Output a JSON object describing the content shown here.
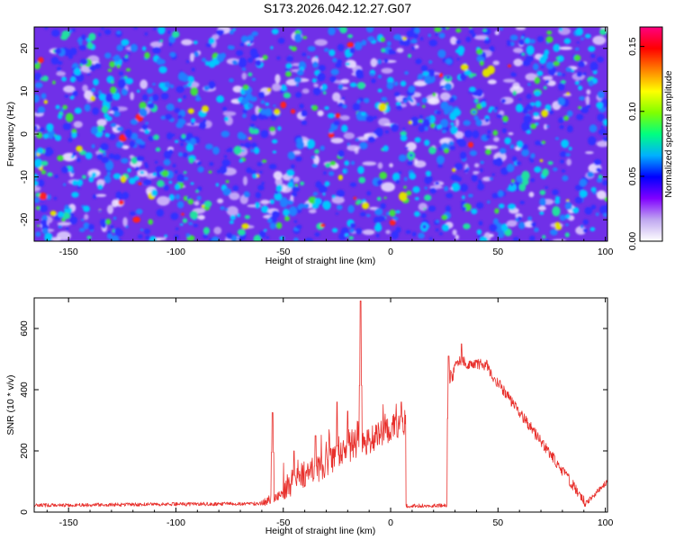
{
  "title": "S173.2026.042.12.27.G07",
  "chart_data": [
    {
      "type": "heatmap",
      "name": "spectrogram",
      "xlabel": "Height of straight line (km)",
      "ylabel": "Frequency (Hz)",
      "xlim": [
        -166,
        101
      ],
      "ylim": [
        -25,
        25
      ],
      "xticks": [
        -150,
        -100,
        -50,
        0,
        50,
        100
      ],
      "yticks": [
        -20,
        -10,
        0,
        10,
        20
      ],
      "colorbar": {
        "label": "Normalized spectral amplitude",
        "range": [
          0,
          0.165
        ],
        "ticks": [
          "0.00",
          "0.05",
          "0.10",
          "0.15"
        ],
        "colors": [
          "#ffffff",
          "#c0a8f0",
          "#8000ff",
          "#0000ff",
          "#00b0ff",
          "#00ff80",
          "#80ff00",
          "#ffff00",
          "#ff8000",
          "#ff0000",
          "#ff0080"
        ]
      },
      "background_color": "#7030e8",
      "blob_colors": [
        "#3030ff",
        "#2080ff",
        "#00c8ff",
        "#20e0a0",
        "#40e040",
        "#e0e000",
        "#ff2020"
      ]
    },
    {
      "type": "line",
      "name": "snr",
      "xlabel": "Height of straight line (km)",
      "ylabel": "SNR (10 * v/v)",
      "xlim": [
        -166,
        101
      ],
      "ylim": [
        0,
        700
      ],
      "xticks": [
        -150,
        -100,
        -50,
        0,
        50,
        100
      ],
      "yticks": [
        0,
        200,
        400,
        600
      ],
      "color": "#e8302c",
      "segments": [
        {
          "x": [
            -166,
            -60
          ],
          "y": [
            22,
            28
          ],
          "noise": 6
        },
        {
          "x": [
            -60,
            -50
          ],
          "y": [
            30,
            60
          ],
          "noise": 15
        },
        {
          "x": [
            -50,
            7
          ],
          "y": [
            80,
            300
          ],
          "noise": 45
        },
        {
          "x": [
            7,
            27
          ],
          "y": [
            20,
            22
          ],
          "noise": 6
        },
        {
          "x": [
            27,
            32
          ],
          "y": [
            430,
            490
          ],
          "noise": 25
        },
        {
          "x": [
            32,
            45
          ],
          "y": [
            490,
            480
          ],
          "noise": 20
        },
        {
          "x": [
            45,
            90
          ],
          "y": [
            470,
            40
          ],
          "noise": 18
        },
        {
          "x": [
            90,
            101
          ],
          "y": [
            20,
            100
          ],
          "noise": 10
        }
      ],
      "peaks": [
        {
          "x": -55,
          "y": 325
        },
        {
          "x": -45,
          "y": 200
        },
        {
          "x": -35,
          "y": 250
        },
        {
          "x": -25,
          "y": 360
        },
        {
          "x": -20,
          "y": 330
        },
        {
          "x": -14,
          "y": 690
        },
        {
          "x": 5,
          "y": 360
        },
        {
          "x": 27,
          "y": 510
        },
        {
          "x": 33,
          "y": 550
        }
      ]
    }
  ]
}
